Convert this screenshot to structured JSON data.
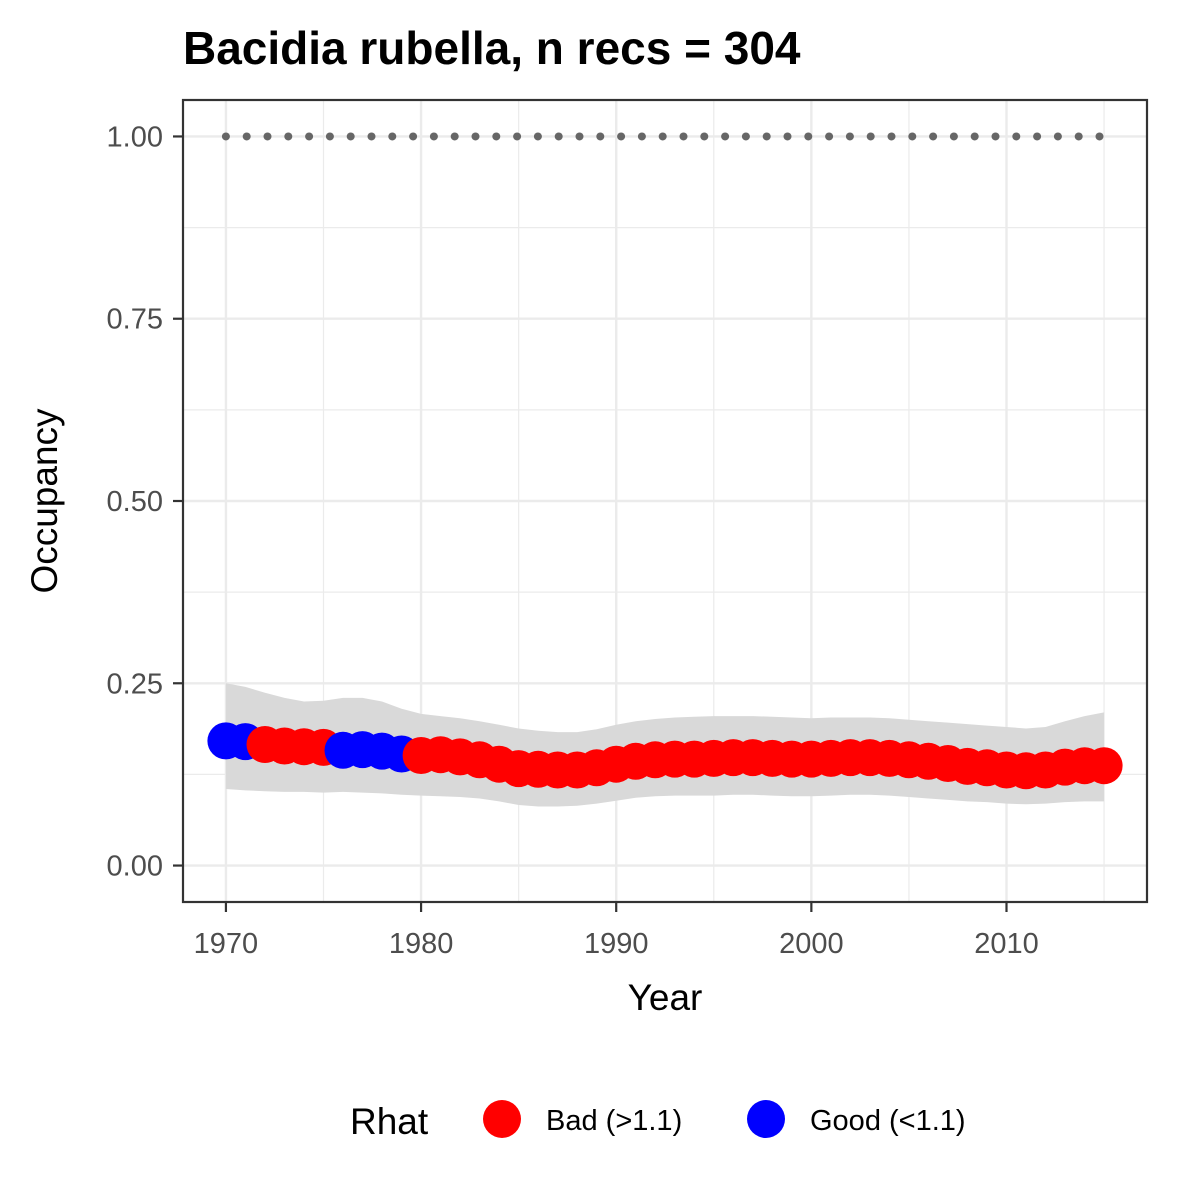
{
  "chart_data": {
    "type": "scatter",
    "title": "Bacidia rubella, n recs = 304",
    "xlabel": "Year",
    "ylabel": "Occupancy",
    "xlim": [
      1967.8,
      2017.2
    ],
    "ylim": [
      -0.05,
      1.05
    ],
    "x_ticks": [
      1970,
      1980,
      1990,
      2000,
      2010
    ],
    "x_tick_labels": [
      "1970",
      "1980",
      "1990",
      "2000",
      "2010"
    ],
    "y_ticks": [
      0,
      0.25,
      0.5,
      0.75,
      1.0
    ],
    "y_tick_labels": [
      "0.00",
      "0.25",
      "0.50",
      "0.75",
      "1.00"
    ],
    "grid": true,
    "legend": {
      "title": "Rhat",
      "position": "bottom",
      "entries": [
        {
          "label": "Bad (>1.1)",
          "color": "#ff0000"
        },
        {
          "label": "Good (<1.1)",
          "color": "#0000ff"
        }
      ]
    },
    "colors": {
      "bad": "#ff0000",
      "good": "#0000ff",
      "ribbon": "#d9d9d9",
      "reference": "#666666"
    },
    "years": [
      1970,
      1971,
      1972,
      1973,
      1974,
      1975,
      1976,
      1977,
      1978,
      1979,
      1980,
      1981,
      1982,
      1983,
      1984,
      1985,
      1986,
      1987,
      1988,
      1989,
      1990,
      1991,
      1992,
      1993,
      1994,
      1995,
      1996,
      1997,
      1998,
      1999,
      2000,
      2001,
      2002,
      2003,
      2004,
      2005,
      2006,
      2007,
      2008,
      2009,
      2010,
      2011,
      2012,
      2013,
      2014,
      2015
    ],
    "occupancy": [
      0.171,
      0.17,
      0.166,
      0.164,
      0.163,
      0.162,
      0.158,
      0.159,
      0.157,
      0.153,
      0.151,
      0.152,
      0.149,
      0.145,
      0.139,
      0.133,
      0.132,
      0.131,
      0.131,
      0.134,
      0.139,
      0.143,
      0.145,
      0.146,
      0.146,
      0.147,
      0.148,
      0.148,
      0.147,
      0.146,
      0.146,
      0.147,
      0.148,
      0.148,
      0.147,
      0.145,
      0.143,
      0.14,
      0.136,
      0.134,
      0.131,
      0.13,
      0.131,
      0.135,
      0.137,
      0.137
    ],
    "lower": [
      0.105,
      0.103,
      0.102,
      0.101,
      0.101,
      0.1,
      0.101,
      0.1,
      0.099,
      0.097,
      0.096,
      0.095,
      0.094,
      0.092,
      0.088,
      0.083,
      0.081,
      0.081,
      0.082,
      0.085,
      0.089,
      0.093,
      0.095,
      0.096,
      0.096,
      0.096,
      0.097,
      0.097,
      0.096,
      0.095,
      0.095,
      0.096,
      0.097,
      0.097,
      0.096,
      0.094,
      0.092,
      0.09,
      0.088,
      0.087,
      0.085,
      0.084,
      0.085,
      0.087,
      0.088,
      0.088
    ],
    "upper": [
      0.25,
      0.245,
      0.237,
      0.23,
      0.225,
      0.226,
      0.23,
      0.23,
      0.225,
      0.215,
      0.208,
      0.205,
      0.202,
      0.198,
      0.193,
      0.188,
      0.185,
      0.183,
      0.183,
      0.187,
      0.193,
      0.198,
      0.201,
      0.203,
      0.204,
      0.205,
      0.205,
      0.205,
      0.204,
      0.203,
      0.202,
      0.203,
      0.203,
      0.203,
      0.202,
      0.2,
      0.198,
      0.196,
      0.194,
      0.192,
      0.19,
      0.188,
      0.19,
      0.198,
      0.205,
      0.21
    ],
    "rhat_status": [
      "good",
      "good",
      "bad",
      "bad",
      "bad",
      "bad",
      "good",
      "good",
      "good",
      "good",
      "bad",
      "bad",
      "bad",
      "bad",
      "bad",
      "bad",
      "bad",
      "bad",
      "bad",
      "bad",
      "bad",
      "bad",
      "bad",
      "bad",
      "bad",
      "bad",
      "bad",
      "bad",
      "bad",
      "bad",
      "bad",
      "bad",
      "bad",
      "bad",
      "bad",
      "bad",
      "bad",
      "bad",
      "bad",
      "bad",
      "bad",
      "bad",
      "bad",
      "bad",
      "bad",
      "bad"
    ],
    "reference_line": {
      "y": 1.0,
      "style": "dotted"
    }
  }
}
